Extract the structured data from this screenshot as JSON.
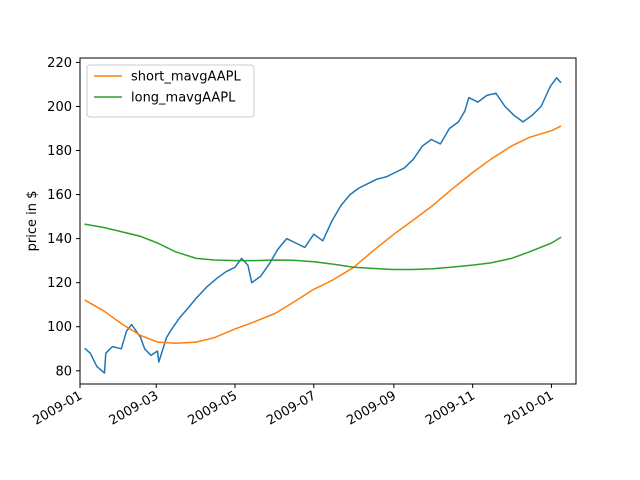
{
  "chart_data": {
    "type": "line",
    "title": "",
    "xlabel": "",
    "ylabel": "price in $",
    "xlim": [
      "2009-01-01",
      "2010-01-20"
    ],
    "ylim": [
      74,
      222
    ],
    "x_ticks": [
      "2009-01",
      "2009-03",
      "2009-05",
      "2009-07",
      "2009-09",
      "2009-11",
      "2010-01"
    ],
    "y_ticks": [
      80,
      100,
      120,
      140,
      160,
      180,
      200,
      220
    ],
    "grid": false,
    "legend_position": "top-left",
    "colors": {
      "price": "#1f77b4",
      "short": "#ff7f0e",
      "long": "#2ca02c"
    },
    "series": [
      {
        "key": "price",
        "in_legend": false,
        "x": [
          "2009-01-05",
          "2009-01-09",
          "2009-01-14",
          "2009-01-20",
          "2009-01-21",
          "2009-01-26",
          "2009-02-02",
          "2009-02-06",
          "2009-02-10",
          "2009-02-17",
          "2009-02-20",
          "2009-02-25",
          "2009-03-02",
          "2009-03-03",
          "2009-03-09",
          "2009-03-12",
          "2009-03-19",
          "2009-03-25",
          "2009-04-01",
          "2009-04-09",
          "2009-04-17",
          "2009-04-24",
          "2009-05-01",
          "2009-05-06",
          "2009-05-11",
          "2009-05-14",
          "2009-05-21",
          "2009-05-28",
          "2009-06-03",
          "2009-06-10",
          "2009-06-17",
          "2009-06-24",
          "2009-07-01",
          "2009-07-08",
          "2009-07-15",
          "2009-07-22",
          "2009-07-29",
          "2009-08-05",
          "2009-08-12",
          "2009-08-19",
          "2009-08-26",
          "2009-09-02",
          "2009-09-09",
          "2009-09-16",
          "2009-09-23",
          "2009-09-30",
          "2009-10-07",
          "2009-10-14",
          "2009-10-21",
          "2009-10-26",
          "2009-10-29",
          "2009-11-05",
          "2009-11-12",
          "2009-11-19",
          "2009-11-26",
          "2009-12-03",
          "2009-12-10",
          "2009-12-17",
          "2009-12-24",
          "2009-12-31",
          "2010-01-05",
          "2010-01-08"
        ],
        "y": [
          90,
          88,
          82,
          79,
          88,
          91,
          90,
          98,
          101,
          95,
          90,
          87,
          89,
          84,
          95,
          98,
          104,
          108,
          113,
          118,
          122,
          125,
          127,
          131,
          128,
          120,
          123,
          129,
          135,
          140,
          138,
          136,
          142,
          139,
          148,
          155,
          160,
          163,
          165,
          167,
          168,
          170,
          172,
          176,
          182,
          185,
          183,
          190,
          193,
          198,
          204,
          202,
          205,
          206,
          200,
          196,
          193,
          196,
          200,
          209,
          213,
          211
        ]
      },
      {
        "key": "short",
        "name": "short_mavgAAPL",
        "in_legend": true,
        "x": [
          "2009-01-05",
          "2009-01-20",
          "2009-02-03",
          "2009-02-17",
          "2009-03-02",
          "2009-03-16",
          "2009-04-01",
          "2009-04-15",
          "2009-05-01",
          "2009-05-15",
          "2009-06-01",
          "2009-06-15",
          "2009-07-01",
          "2009-07-15",
          "2009-08-01",
          "2009-08-15",
          "2009-09-01",
          "2009-09-15",
          "2009-10-01",
          "2009-10-15",
          "2009-11-01",
          "2009-11-15",
          "2009-12-01",
          "2009-12-15",
          "2010-01-01",
          "2010-01-08"
        ],
        "y": [
          112,
          107,
          101,
          96,
          93,
          92.5,
          93,
          95,
          99,
          102,
          106,
          111,
          117,
          121,
          127,
          134,
          142,
          148,
          155,
          162,
          170,
          176,
          182,
          186,
          189,
          191
        ]
      },
      {
        "key": "long",
        "name": "long_mavgAAPL",
        "in_legend": true,
        "x": [
          "2009-01-05",
          "2009-01-20",
          "2009-02-03",
          "2009-02-17",
          "2009-03-02",
          "2009-03-16",
          "2009-04-01",
          "2009-04-15",
          "2009-05-01",
          "2009-05-15",
          "2009-06-01",
          "2009-06-15",
          "2009-07-01",
          "2009-07-15",
          "2009-08-01",
          "2009-08-15",
          "2009-09-01",
          "2009-09-15",
          "2009-10-01",
          "2009-10-15",
          "2009-11-01",
          "2009-11-15",
          "2009-12-01",
          "2009-12-15",
          "2010-01-01",
          "2010-01-08"
        ],
        "y": [
          146.5,
          145,
          143,
          141,
          138,
          134,
          131,
          130.3,
          130,
          130,
          130.3,
          130.2,
          129.5,
          128.5,
          127,
          126.5,
          126,
          126,
          126.3,
          127,
          128,
          129,
          131,
          134,
          138,
          140.5
        ]
      }
    ]
  }
}
